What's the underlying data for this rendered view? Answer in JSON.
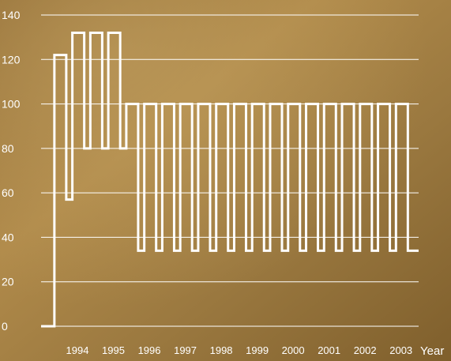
{
  "chart_data": {
    "type": "line",
    "step": true,
    "x_axis_label": "Year",
    "y_axis": {
      "min": 0,
      "max": 140,
      "ticks": [
        0,
        20,
        40,
        60,
        80,
        100,
        120,
        140
      ]
    },
    "x_tick_labels": [
      "1994",
      "1995",
      "1996",
      "1997",
      "1998",
      "1999",
      "2000",
      "2001",
      "2002",
      "2003"
    ],
    "x_range": [
      1993.5,
      2004.0
    ],
    "grid": "horizontal",
    "series": [
      {
        "points": [
          [
            1993.5,
            0
          ],
          [
            1993.87,
            122
          ],
          [
            1994.2,
            57
          ],
          [
            1994.37,
            132
          ],
          [
            1994.7,
            80
          ],
          [
            1994.87,
            132
          ],
          [
            1995.2,
            80
          ],
          [
            1995.37,
            132
          ],
          [
            1995.7,
            80
          ],
          [
            1995.87,
            100
          ],
          [
            1996.2,
            34
          ],
          [
            1996.37,
            100
          ],
          [
            1996.7,
            34
          ],
          [
            1996.87,
            100
          ],
          [
            1997.2,
            34
          ],
          [
            1997.37,
            100
          ],
          [
            1997.7,
            34
          ],
          [
            1997.87,
            100
          ],
          [
            1998.2,
            34
          ],
          [
            1998.37,
            100
          ],
          [
            1998.7,
            34
          ],
          [
            1998.87,
            100
          ],
          [
            1999.2,
            34
          ],
          [
            1999.37,
            100
          ],
          [
            1999.7,
            34
          ],
          [
            1999.87,
            100
          ],
          [
            2000.2,
            34
          ],
          [
            2000.37,
            100
          ],
          [
            2000.7,
            34
          ],
          [
            2000.87,
            100
          ],
          [
            2001.2,
            34
          ],
          [
            2001.37,
            100
          ],
          [
            2001.7,
            34
          ],
          [
            2001.87,
            100
          ],
          [
            2002.2,
            34
          ],
          [
            2002.37,
            100
          ],
          [
            2002.7,
            34
          ],
          [
            2002.87,
            100
          ],
          [
            2003.2,
            34
          ],
          [
            2003.37,
            100
          ],
          [
            2003.7,
            34
          ],
          [
            2004.0,
            34
          ]
        ]
      }
    ],
    "colors": {
      "background": "#a07c3e",
      "line": "#ffffff",
      "grid": "#ffffff"
    }
  }
}
